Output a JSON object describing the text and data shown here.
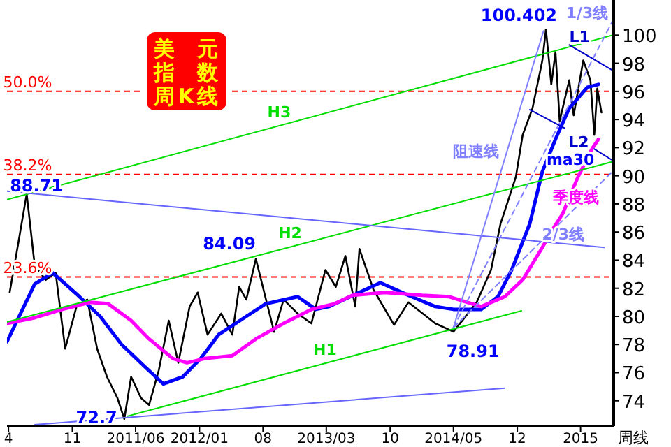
{
  "chart_data": {
    "type": "line",
    "title": "美元指数周K线",
    "xlabel": "周线",
    "xlim": [
      "2010-03-27",
      "2015-10-20"
    ],
    "ylim": [
      72.2,
      102.5
    ],
    "yticks": [
      74,
      76,
      78,
      80,
      82,
      84,
      86,
      88,
      90,
      92,
      94,
      96,
      98,
      100
    ],
    "xticks": [
      {
        "value": "2010-04",
        "label": "4"
      },
      {
        "value": "2010-11",
        "label": "11"
      },
      {
        "value": "2011-06",
        "label": "2011/06"
      },
      {
        "value": "2012-01",
        "label": "2012/01"
      },
      {
        "value": "2012-08",
        "label": "08"
      },
      {
        "value": "2013-03",
        "label": "2013/03"
      },
      {
        "value": "2013-10",
        "label": "10"
      },
      {
        "value": "2014-05",
        "label": "2014/05"
      },
      {
        "value": "2014-12",
        "label": "12"
      },
      {
        "value": "2015-07",
        "label": "2015"
      }
    ],
    "ref_lines": [
      {
        "axis": "y",
        "value": 96.0,
        "color": "#ff0000",
        "line_style": "dashed"
      },
      {
        "axis": "y",
        "value": 90.1,
        "color": "#ff0000",
        "line_style": "dashed"
      },
      {
        "axis": "y",
        "value": 82.8,
        "color": "#ff0000",
        "line_style": "dashed"
      }
    ],
    "annotations": [
      {
        "text": "88.71",
        "x": "2010-06-01",
        "y": 88.71
      },
      {
        "text": "72.7",
        "x": "2011-04-24",
        "y": 72.7
      },
      {
        "text": "84.09",
        "x": "2012-07-08",
        "y": 84.09
      },
      {
        "text": "78.91",
        "x": "2014-05-01",
        "y": 78.91
      },
      {
        "text": "100.402",
        "x": "2015-03-07",
        "y": 100.402
      },
      {
        "text": "50.0%",
        "x": "2010-03-28",
        "y": 96.0
      },
      {
        "text": "38.2%",
        "x": "2010-03-28",
        "y": 90.1
      },
      {
        "text": "23.6%",
        "x": "2010-03-28",
        "y": 82.8
      }
    ],
    "series": [
      {
        "color": "#000000",
        "x": [
          "2010-04-05",
          "2010-05-03",
          "2010-06-01",
          "2010-06-28",
          "2010-08-04",
          "2010-09-06",
          "2010-10-08",
          "2010-11-15",
          "2010-12-21",
          "2011-01-23",
          "2011-02-25",
          "2011-04-01",
          "2011-04-24",
          "2011-05-17",
          "2011-06-19",
          "2011-07-16",
          "2011-08-18",
          "2011-09-20",
          "2011-10-22",
          "2011-11-29",
          "2011-12-26",
          "2012-01-28",
          "2012-03-14",
          "2012-04-20",
          "2012-05-13",
          "2012-06-06",
          "2012-07-08",
          "2012-08-05",
          "2012-09-07",
          "2012-10-09",
          "2012-11-25",
          "2013-01-10",
          "2013-02-26",
          "2013-04-02",
          "2013-05-04",
          "2013-06-06",
          "2013-06-20",
          "2013-08-06",
          "2013-10-14",
          "2013-12-01",
          "2014-03-01",
          "2014-05-01",
          "2014-07-18",
          "2014-09-04",
          "2014-10-06",
          "2014-11-26",
          "2014-12-19",
          "2015-01-21",
          "2015-02-23",
          "2015-03-07",
          "2015-03-25",
          "2015-04-08",
          "2015-04-22",
          "2015-05-24",
          "2015-06-08",
          "2015-07-10",
          "2015-08-03",
          "2015-08-16",
          "2015-08-26",
          "2015-09-09"
        ],
        "values": [
          81.7,
          85.1,
          88.71,
          83.6,
          82.6,
          83.1,
          77.7,
          80.7,
          81.2,
          77.7,
          75.7,
          74.2,
          72.7,
          75.7,
          74.2,
          73.7,
          76.2,
          79.7,
          76.7,
          80.7,
          81.7,
          78.7,
          80.2,
          78.7,
          82.1,
          81.2,
          84.09,
          81.7,
          78.9,
          81.2,
          80.2,
          79.5,
          83.3,
          82.1,
          84.3,
          80.7,
          84.8,
          81.9,
          79.4,
          81.0,
          79.5,
          78.91,
          81.0,
          83.3,
          86.6,
          89.9,
          92.9,
          94.8,
          98.2,
          100.402,
          96.5,
          98.8,
          93.9,
          96.8,
          94.3,
          98.2,
          96.8,
          92.9,
          96.2,
          94.5
        ]
      },
      {
        "name": "ma30",
        "color": "#0000ff",
        "x": [
          "2010-03-27",
          "2010-06-28",
          "2010-08-27",
          "2010-11-15",
          "2011-02-02",
          "2011-04-15",
          "2011-07-03",
          "2011-09-02",
          "2011-11-06",
          "2012-01-05",
          "2012-03-05",
          "2012-06-06",
          "2012-08-10",
          "2012-11-25",
          "2013-01-25",
          "2013-03-10",
          "2013-08-29",
          "2013-12-01",
          "2014-03-01",
          "2014-05-01",
          "2014-08-02",
          "2014-09-27",
          "2014-11-12",
          "2014-12-19",
          "2015-01-12",
          "2015-02-23",
          "2015-04-08",
          "2015-05-24",
          "2015-07-24",
          "2015-08-30"
        ],
        "values": [
          78.2,
          82.3,
          83.1,
          81.6,
          80.0,
          78.0,
          76.4,
          75.2,
          75.7,
          77.0,
          78.7,
          80.0,
          80.9,
          81.4,
          80.5,
          80.7,
          82.4,
          81.5,
          80.7,
          80.5,
          80.5,
          81.4,
          83.3,
          85.3,
          86.6,
          90.3,
          92.6,
          94.8,
          96.3,
          96.5
        ]
      },
      {
        "name": "季度线",
        "color": "#ff00ff",
        "x": [
          "2010-03-27",
          "2010-06-28",
          "2010-09-29",
          "2010-12-30",
          "2011-03-01",
          "2011-05-17",
          "2011-07-16",
          "2011-10-04",
          "2011-11-20",
          "2012-01-19",
          "2012-04-20",
          "2012-07-08",
          "2012-10-09",
          "2013-01-10",
          "2013-03-29",
          "2013-05-28",
          "2013-09-13",
          "2014-01-16",
          "2014-04-17",
          "2014-08-02",
          "2014-10-20",
          "2014-12-19",
          "2015-02-23",
          "2015-03-21",
          "2015-05-02",
          "2015-06-22",
          "2015-08-08",
          "2015-08-30"
        ],
        "values": [
          79.5,
          79.9,
          80.5,
          81.0,
          80.9,
          79.7,
          78.4,
          77.0,
          76.7,
          77.0,
          77.2,
          78.4,
          79.5,
          80.5,
          80.9,
          81.5,
          81.7,
          81.5,
          81.4,
          80.7,
          81.4,
          82.6,
          84.9,
          85.9,
          87.3,
          89.9,
          91.9,
          92.6
        ]
      },
      {
        "name": "H3",
        "color": "#00dd00",
        "x": [
          "2010-03-27",
          "2015-10-16"
        ],
        "values": [
          88.3,
          100.0
        ]
      },
      {
        "name": "H2",
        "color": "#00dd00",
        "x": [
          "2010-03-27",
          "2015-10-16"
        ],
        "values": [
          79.6,
          91.0
        ]
      },
      {
        "name": "H1",
        "color": "#00dd00",
        "x": [
          "2011-05-04",
          "2014-12-15"
        ],
        "values": [
          72.9,
          80.4
        ]
      },
      {
        "color": "#6666ff",
        "x": [
          "2010-03-27",
          "2015-09-18"
        ],
        "values": [
          88.9,
          84.9
        ]
      },
      {
        "color": "#6666ff",
        "x": [
          "2010-06-28",
          "2014-10-20"
        ],
        "values": [
          72.3,
          74.9
        ]
      },
      {
        "name": "阻速线",
        "color": "#8080ff",
        "x": [
          "2014-05-01",
          "2015-02-27"
        ],
        "values": [
          79.2,
          100.3
        ]
      },
      {
        "name": "1/3线",
        "color": "#8080ff",
        "line_style": "dashed",
        "x": [
          "2014-05-01",
          "2015-10-16"
        ],
        "values": [
          79.2,
          101.0
        ]
      },
      {
        "name": "2/3线",
        "color": "#8080ff",
        "line_style": "dashed",
        "x": [
          "2014-05-01",
          "2015-10-16"
        ],
        "values": [
          79.2,
          90.3
        ]
      },
      {
        "name": "L1",
        "color": "#0000cc",
        "x": [
          "2015-05-24",
          "2015-10-16"
        ],
        "values": [
          99.3,
          97.5
        ]
      },
      {
        "name": "L2",
        "color": "#0000cc",
        "x": [
          "2015-01-12",
          "2015-05-07"
        ],
        "values": [
          94.7,
          93.4
        ]
      },
      {
        "color": "#0000cc",
        "x": [
          "2015-08-16",
          "2015-10-16"
        ],
        "values": [
          91.9,
          91.1
        ]
      }
    ]
  }
}
